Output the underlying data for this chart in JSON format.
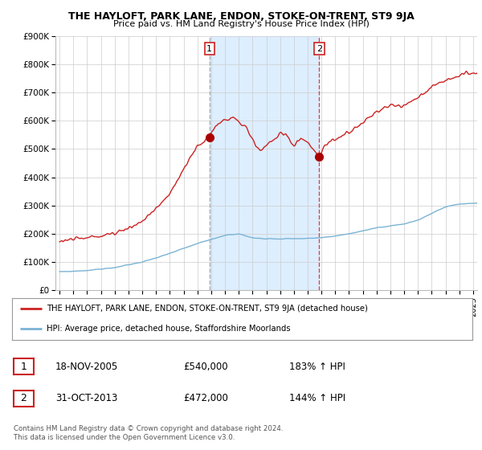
{
  "title": "THE HAYLOFT, PARK LANE, ENDON, STOKE-ON-TRENT, ST9 9JA",
  "subtitle": "Price paid vs. HM Land Registry's House Price Index (HPI)",
  "legend_line1": "THE HAYLOFT, PARK LANE, ENDON, STOKE-ON-TRENT, ST9 9JA (detached house)",
  "legend_line2": "HPI: Average price, detached house, Staffordshire Moorlands",
  "footnote": "Contains HM Land Registry data © Crown copyright and database right 2024.\nThis data is licensed under the Open Government Licence v3.0.",
  "transaction1_date": "18-NOV-2005",
  "transaction1_price": "£540,000",
  "transaction1_hpi": "183% ↑ HPI",
  "transaction2_date": "31-OCT-2013",
  "transaction2_price": "£472,000",
  "transaction2_hpi": "144% ↑ HPI",
  "ylim": [
    0,
    900000
  ],
  "yticks": [
    0,
    100000,
    200000,
    300000,
    400000,
    500000,
    600000,
    700000,
    800000,
    900000
  ],
  "ytick_labels": [
    "£0",
    "£100K",
    "£200K",
    "£300K",
    "£400K",
    "£500K",
    "£600K",
    "£700K",
    "£800K",
    "£900K"
  ],
  "hpi_color": "#7ab3d4",
  "price_color": "#cc2222",
  "marker_color": "#aa0000",
  "vline1_color": "#aaaaaa",
  "vline2_color": "#dd4444",
  "span_color": "#ddeeff",
  "background_color": "#ffffff",
  "grid_color": "#cccccc",
  "transaction1_x": 2005.88,
  "transaction2_x": 2013.83,
  "transaction1_y": 540000,
  "transaction2_y": 472000,
  "xlim_left": 1994.7,
  "xlim_right": 2025.3
}
